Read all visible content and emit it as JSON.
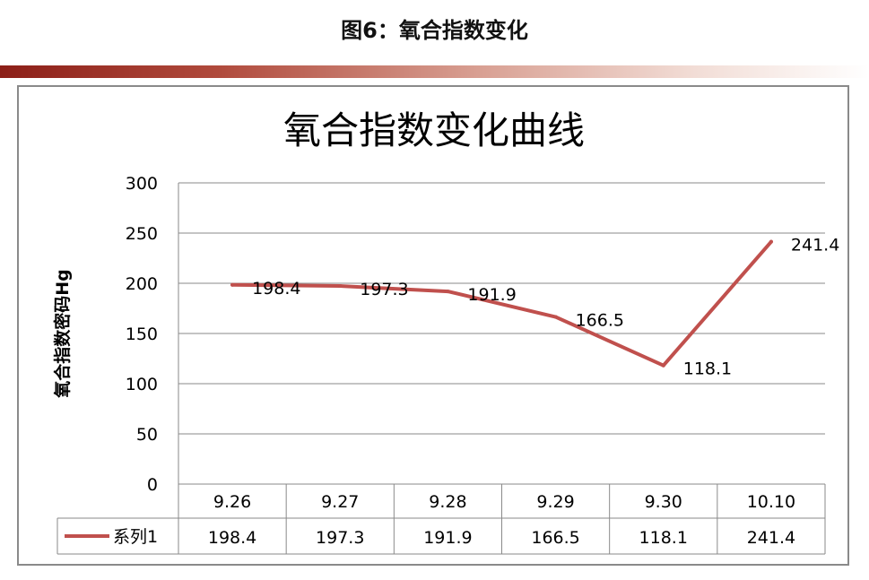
{
  "page": {
    "figure_title": "图6：氧合指数变化"
  },
  "chart_data": {
    "type": "line",
    "title": "氧合指数变化曲线",
    "ylabel": "氧合指数密码Hg",
    "xlabel": "",
    "ylim": [
      0,
      300
    ],
    "yticks": [
      0,
      50,
      100,
      150,
      200,
      250,
      300
    ],
    "categories": [
      "9.26",
      "9.27",
      "9.28",
      "9.29",
      "9.30",
      "10.10"
    ],
    "series": [
      {
        "name": "系列1",
        "values": [
          198.4,
          197.3,
          191.9,
          166.5,
          118.1,
          241.4
        ],
        "color": "#c0504d"
      }
    ],
    "data_labels": [
      "198.4",
      "197.3",
      "191.9",
      "166.5",
      "118.1",
      "241.4"
    ],
    "data_table": true,
    "grid": "horizontal",
    "legend": "data-table-left"
  }
}
